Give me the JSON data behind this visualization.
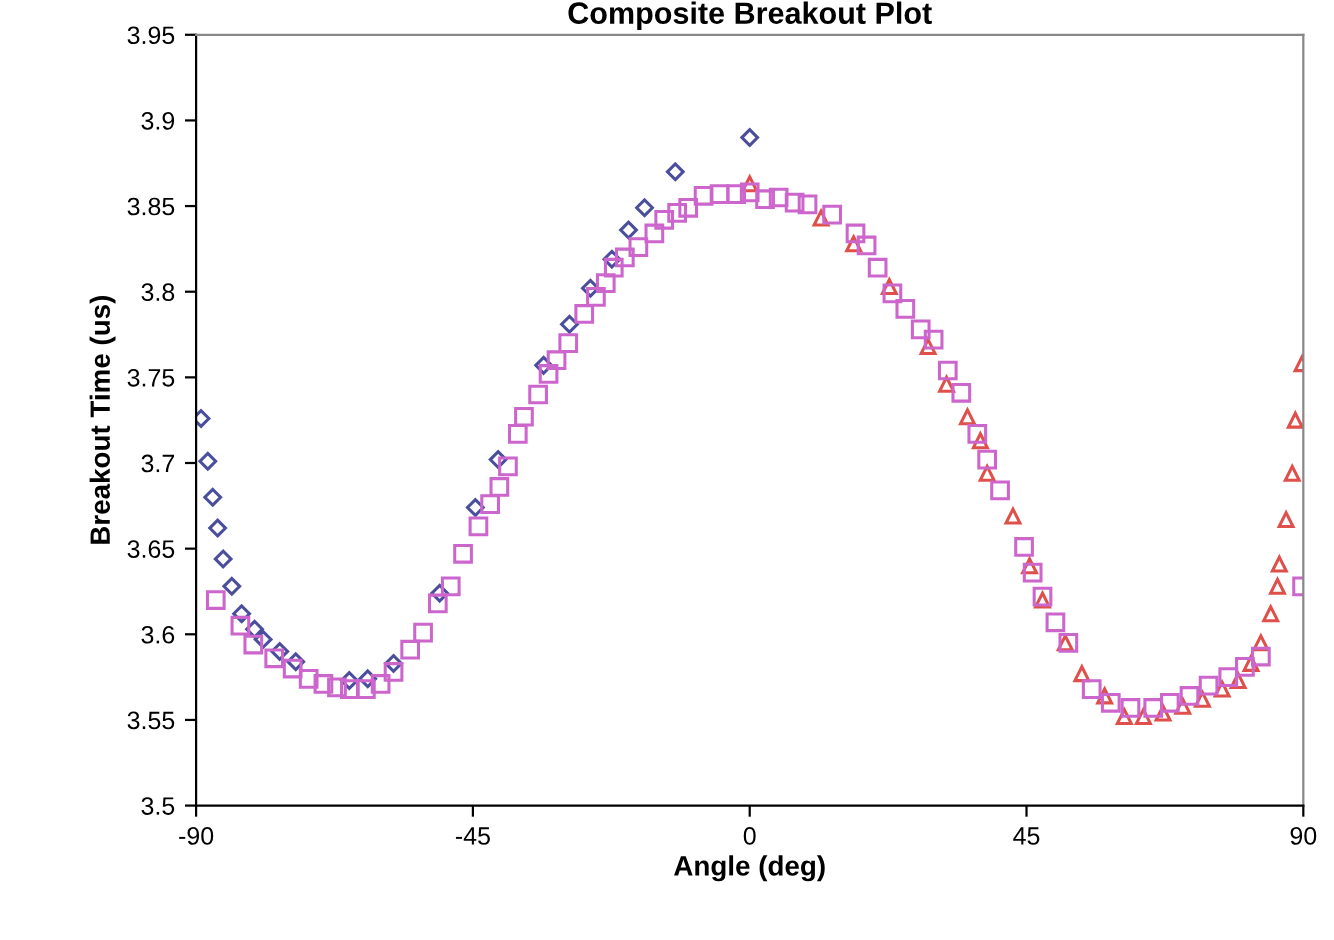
{
  "chart_data": {
    "type": "scatter",
    "title": "Composite Breakout Plot",
    "xlabel": "Angle (deg)",
    "ylabel": "Breakout Time (us)",
    "xlim": [
      -90,
      90
    ],
    "xticks": [
      -90,
      -45,
      0,
      45,
      90
    ],
    "ylim": [
      3.5,
      3.95
    ],
    "yticks": [
      3.5,
      3.55,
      3.6,
      3.65,
      3.7,
      3.75,
      3.8,
      3.85,
      3.9,
      3.95
    ],
    "grid": false,
    "legend": false,
    "series": [
      {
        "color": "#4a4e9c",
        "marker": "diamond",
        "x": [
          -89.2,
          -88.1,
          -87.3,
          -86.5,
          -85.6,
          -84.2,
          -82.6,
          -80.5,
          -79.1,
          -76.4,
          -73.8,
          -65.1,
          -62.1,
          -57.9,
          -50.4,
          -44.6,
          -40.9,
          -33.5,
          -29.3,
          -25.9,
          -22.4,
          -19.7,
          -17.1,
          -12.1,
          0
        ],
        "values": [
          3.726,
          3.701,
          3.68,
          3.662,
          3.644,
          3.628,
          3.612,
          3.603,
          3.597,
          3.59,
          3.584,
          3.573,
          3.574,
          3.583,
          3.624,
          3.674,
          3.702,
          3.757,
          3.781,
          3.802,
          3.819,
          3.836,
          3.849,
          3.87,
          3.89
        ]
      },
      {
        "color": "#e0504a",
        "marker": "triangle",
        "x": [
          0,
          11.6,
          16.9,
          22.7,
          29.0,
          32.0,
          35.4,
          37.5,
          38.6,
          42.8,
          45.5,
          47.6,
          51.3,
          54.0,
          57.7,
          60.9,
          64.0,
          67.2,
          70.4,
          73.6,
          76.8,
          79.4,
          81.5,
          83.1,
          84.7,
          85.8,
          86.1,
          87.2,
          88.2,
          88.7,
          89.8
        ],
        "values": [
          3.863,
          3.843,
          3.828,
          3.803,
          3.768,
          3.746,
          3.727,
          3.713,
          3.694,
          3.669,
          3.64,
          3.62,
          3.595,
          3.577,
          3.564,
          3.552,
          3.552,
          3.554,
          3.558,
          3.562,
          3.568,
          3.573,
          3.583,
          3.595,
          3.612,
          3.628,
          3.641,
          3.667,
          3.694,
          3.725,
          3.758
        ]
      },
      {
        "color": "#cc66cc",
        "marker": "square",
        "x": [
          -86.8,
          -82.8,
          -80.7,
          -77.3,
          -74.3,
          -71.7,
          -69.3,
          -67.1,
          -65.0,
          -62.4,
          -60.0,
          -57.9,
          -55.2,
          -53.1,
          -50.7,
          -48.6,
          -46.6,
          -44.1,
          -42.2,
          -40.7,
          -39.3,
          -37.7,
          -36.7,
          -34.4,
          -32.7,
          -31.4,
          -29.5,
          -26.9,
          -25.0,
          -23.4,
          -22.1,
          -20.3,
          -18.1,
          -15.5,
          -13.9,
          -11.8,
          -10.0,
          -7.5,
          -4.9,
          -2.2,
          0.0,
          2.5,
          4.7,
          7.3,
          9.4,
          13.4,
          17.2,
          19.0,
          20.8,
          23.2,
          25.3,
          27.8,
          29.9,
          32.2,
          34.4,
          37.0,
          38.6,
          40.7,
          44.6,
          46.0,
          47.6,
          49.7,
          51.8,
          55.6,
          58.7,
          61.9,
          65.6,
          68.3,
          71.5,
          74.6,
          77.8,
          80.5,
          83.1,
          89.8
        ],
        "values": [
          3.62,
          3.605,
          3.594,
          3.586,
          3.58,
          3.574,
          3.571,
          3.569,
          3.568,
          3.568,
          3.571,
          3.578,
          3.591,
          3.601,
          3.618,
          3.628,
          3.647,
          3.663,
          3.676,
          3.686,
          3.698,
          3.717,
          3.727,
          3.74,
          3.752,
          3.76,
          3.77,
          3.787,
          3.797,
          3.805,
          3.814,
          3.82,
          3.826,
          3.834,
          3.842,
          3.846,
          3.849,
          3.856,
          3.857,
          3.857,
          3.858,
          3.854,
          3.855,
          3.852,
          3.851,
          3.845,
          3.834,
          3.827,
          3.814,
          3.799,
          3.79,
          3.778,
          3.772,
          3.754,
          3.741,
          3.717,
          3.702,
          3.684,
          3.651,
          3.636,
          3.622,
          3.607,
          3.595,
          3.568,
          3.56,
          3.557,
          3.557,
          3.56,
          3.564,
          3.57,
          3.575,
          3.581,
          3.587,
          3.628
        ]
      }
    ]
  }
}
